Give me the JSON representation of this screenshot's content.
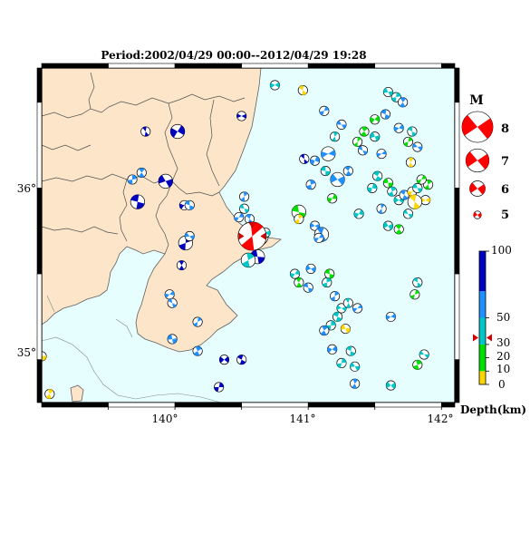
{
  "title": "Period:2002/04/29 00:00--2012/04/29 19:28",
  "lon_labels": [
    "140°",
    "141°",
    "142°"
  ],
  "lat_labels": [
    "36°",
    "35°"
  ],
  "lon_range": [
    139.0,
    142.1
  ],
  "lat_range": [
    34.75,
    36.7
  ],
  "magnitude_legend": {
    "title": "M",
    "items": [
      {
        "label": "8",
        "mag": 8
      },
      {
        "label": "7",
        "mag": 7
      },
      {
        "label": "6",
        "mag": 6
      },
      {
        "label": "5",
        "mag": 5
      }
    ]
  },
  "depth_scale": {
    "title": "Depth(km)",
    "labels": [
      "100",
      "50",
      "30",
      "20",
      "10",
      "0"
    ],
    "bands": [
      {
        "from": 0,
        "to": 10,
        "color": "#ffd700"
      },
      {
        "from": 10,
        "to": 30,
        "color": "#00e000"
      },
      {
        "from": 30,
        "to": 50,
        "color": "#00c8c8"
      },
      {
        "from": 50,
        "to": 70,
        "color": "#1e90ff"
      },
      {
        "from": 70,
        "to": 100,
        "color": "#0000c0"
      }
    ],
    "marker_depth": 35
  },
  "colors": {
    "land": "#fce5c8",
    "sea": "#e6fefe",
    "boundary": "#505050",
    "frame": "#000000",
    "main_event": "#ff0000"
  },
  "mechanisms": [
    {
      "lon": 140.58,
      "lat": 35.72,
      "mag": 7,
      "color": "#ff0000",
      "main": true
    },
    {
      "lon": 140.63,
      "lat": 35.72,
      "mag": 6,
      "color": "#1e90ff"
    },
    {
      "lon": 140.62,
      "lat": 35.6,
      "mag": 5.5,
      "color": "#0000c0"
    },
    {
      "lon": 140.55,
      "lat": 35.58,
      "mag": 5.5,
      "color": "#00c8c8"
    },
    {
      "lon": 140.68,
      "lat": 35.74,
      "mag": 5,
      "color": "#00c8c8"
    },
    {
      "lon": 140.56,
      "lat": 35.82,
      "mag": 5,
      "color": "#1e90ff"
    },
    {
      "lon": 140.48,
      "lat": 35.83,
      "mag": 5,
      "color": "#1e90ff"
    },
    {
      "lon": 140.52,
      "lat": 35.88,
      "mag": 5,
      "color": "#00c8c8"
    },
    {
      "lon": 140.52,
      "lat": 35.95,
      "mag": 5,
      "color": "#1e90ff"
    },
    {
      "lon": 140.5,
      "lat": 36.42,
      "mag": 5,
      "color": "#0000c0"
    },
    {
      "lon": 139.78,
      "lat": 36.33,
      "mag": 5,
      "color": "#0000c0"
    },
    {
      "lon": 140.02,
      "lat": 36.33,
      "mag": 5.5,
      "color": "#0000c0"
    },
    {
      "lon": 139.72,
      "lat": 35.92,
      "mag": 5.5,
      "color": "#0000c0"
    },
    {
      "lon": 139.68,
      "lat": 36.05,
      "mag": 5,
      "color": "#1e90ff"
    },
    {
      "lon": 139.93,
      "lat": 36.04,
      "mag": 5.5,
      "color": "#0000c0"
    },
    {
      "lon": 139.75,
      "lat": 36.09,
      "mag": 5,
      "color": "#1e90ff"
    },
    {
      "lon": 140.07,
      "lat": 35.9,
      "mag": 5,
      "color": "#0000c0"
    },
    {
      "lon": 140.11,
      "lat": 35.9,
      "mag": 5,
      "color": "#1e90ff"
    },
    {
      "lon": 140.08,
      "lat": 35.68,
      "mag": 5.5,
      "color": "#0000c0"
    },
    {
      "lon": 140.11,
      "lat": 35.72,
      "mag": 5,
      "color": "#1e90ff"
    },
    {
      "lon": 140.05,
      "lat": 35.55,
      "mag": 5,
      "color": "#0000c0"
    },
    {
      "lon": 139.96,
      "lat": 35.38,
      "mag": 5,
      "color": "#1e90ff"
    },
    {
      "lon": 139.98,
      "lat": 35.33,
      "mag": 5,
      "color": "#1e90ff"
    },
    {
      "lon": 140.17,
      "lat": 35.22,
      "mag": 5,
      "color": "#1e90ff"
    },
    {
      "lon": 139.98,
      "lat": 35.12,
      "mag": 5,
      "color": "#1e90ff"
    },
    {
      "lon": 140.17,
      "lat": 35.05,
      "mag": 5,
      "color": "#1e90ff"
    },
    {
      "lon": 140.37,
      "lat": 35.0,
      "mag": 5,
      "color": "#0000c0"
    },
    {
      "lon": 140.5,
      "lat": 35.0,
      "mag": 5,
      "color": "#0000c0"
    },
    {
      "lon": 140.33,
      "lat": 34.84,
      "mag": 5,
      "color": "#0000c0"
    },
    {
      "lon": 139.0,
      "lat": 35.02,
      "mag": 5,
      "color": "#ffd700"
    },
    {
      "lon": 139.06,
      "lat": 34.8,
      "mag": 5,
      "color": "#ffd700"
    },
    {
      "lon": 140.75,
      "lat": 36.6,
      "mag": 5,
      "color": "#00c8c8"
    },
    {
      "lon": 140.96,
      "lat": 36.57,
      "mag": 5,
      "color": "#ffd700"
    },
    {
      "lon": 141.12,
      "lat": 36.45,
      "mag": 5,
      "color": "#1e90ff"
    },
    {
      "lon": 141.25,
      "lat": 36.37,
      "mag": 5,
      "color": "#1e90ff"
    },
    {
      "lon": 141.2,
      "lat": 36.3,
      "mag": 5,
      "color": "#00c8c8"
    },
    {
      "lon": 141.15,
      "lat": 36.2,
      "mag": 5.5,
      "color": "#1e90ff"
    },
    {
      "lon": 140.97,
      "lat": 36.17,
      "mag": 5,
      "color": "#0000c0"
    },
    {
      "lon": 141.05,
      "lat": 36.16,
      "mag": 5,
      "color": "#1e90ff"
    },
    {
      "lon": 141.13,
      "lat": 36.1,
      "mag": 5,
      "color": "#00c8c8"
    },
    {
      "lon": 141.02,
      "lat": 36.02,
      "mag": 5,
      "color": "#1e90ff"
    },
    {
      "lon": 141.22,
      "lat": 36.05,
      "mag": 5.5,
      "color": "#1e90ff"
    },
    {
      "lon": 141.3,
      "lat": 36.1,
      "mag": 5,
      "color": "#1e90ff"
    },
    {
      "lon": 141.18,
      "lat": 35.94,
      "mag": 5,
      "color": "#00e000"
    },
    {
      "lon": 140.93,
      "lat": 35.86,
      "mag": 5.5,
      "color": "#00e000"
    },
    {
      "lon": 140.93,
      "lat": 35.82,
      "mag": 5,
      "color": "#ffd700"
    },
    {
      "lon": 141.05,
      "lat": 35.78,
      "mag": 5,
      "color": "#1e90ff"
    },
    {
      "lon": 141.1,
      "lat": 35.73,
      "mag": 5.5,
      "color": "#1e90ff"
    },
    {
      "lon": 141.08,
      "lat": 35.71,
      "mag": 5,
      "color": "#1e90ff"
    },
    {
      "lon": 141.41,
      "lat": 36.22,
      "mag": 5,
      "color": "#1e90ff"
    },
    {
      "lon": 141.37,
      "lat": 36.27,
      "mag": 5,
      "color": "#00e000"
    },
    {
      "lon": 141.5,
      "lat": 36.3,
      "mag": 5,
      "color": "#00c8c8"
    },
    {
      "lon": 141.42,
      "lat": 36.33,
      "mag": 5,
      "color": "#00e000"
    },
    {
      "lon": 141.5,
      "lat": 36.4,
      "mag": 5,
      "color": "#00e000"
    },
    {
      "lon": 141.58,
      "lat": 36.43,
      "mag": 5,
      "color": "#1e90ff"
    },
    {
      "lon": 141.66,
      "lat": 36.53,
      "mag": 5,
      "color": "#00c8c8"
    },
    {
      "lon": 141.6,
      "lat": 36.56,
      "mag": 5,
      "color": "#00c8c8"
    },
    {
      "lon": 141.71,
      "lat": 36.5,
      "mag": 5,
      "color": "#1e90ff"
    },
    {
      "lon": 141.68,
      "lat": 36.35,
      "mag": 5,
      "color": "#1e90ff"
    },
    {
      "lon": 141.78,
      "lat": 36.33,
      "mag": 5,
      "color": "#00c8c8"
    },
    {
      "lon": 141.75,
      "lat": 36.27,
      "mag": 5,
      "color": "#00e000"
    },
    {
      "lon": 141.82,
      "lat": 36.24,
      "mag": 5,
      "color": "#1e90ff"
    },
    {
      "lon": 141.77,
      "lat": 36.15,
      "mag": 5,
      "color": "#ffd700"
    },
    {
      "lon": 141.55,
      "lat": 36.2,
      "mag": 5,
      "color": "#1e90ff"
    },
    {
      "lon": 141.52,
      "lat": 36.07,
      "mag": 5,
      "color": "#00c8c8"
    },
    {
      "lon": 141.48,
      "lat": 36.0,
      "mag": 5,
      "color": "#00c8c8"
    },
    {
      "lon": 141.6,
      "lat": 36.03,
      "mag": 5,
      "color": "#00e000"
    },
    {
      "lon": 141.63,
      "lat": 35.98,
      "mag": 5,
      "color": "#00c8c8"
    },
    {
      "lon": 141.68,
      "lat": 35.93,
      "mag": 5,
      "color": "#00c8c8"
    },
    {
      "lon": 141.72,
      "lat": 35.96,
      "mag": 5,
      "color": "#1e90ff"
    },
    {
      "lon": 141.78,
      "lat": 35.98,
      "mag": 5,
      "color": "#ffd700"
    },
    {
      "lon": 141.82,
      "lat": 36.0,
      "mag": 5,
      "color": "#00c8c8"
    },
    {
      "lon": 141.9,
      "lat": 36.02,
      "mag": 5,
      "color": "#00e000"
    },
    {
      "lon": 141.88,
      "lat": 35.93,
      "mag": 5,
      "color": "#ffd700"
    },
    {
      "lon": 141.8,
      "lat": 35.92,
      "mag": 5.5,
      "color": "#ffd700"
    },
    {
      "lon": 141.85,
      "lat": 36.05,
      "mag": 5,
      "color": "#00e000"
    },
    {
      "lon": 141.75,
      "lat": 35.85,
      "mag": 5,
      "color": "#00c8c8"
    },
    {
      "lon": 141.55,
      "lat": 35.88,
      "mag": 5,
      "color": "#1e90ff"
    },
    {
      "lon": 141.6,
      "lat": 35.78,
      "mag": 5,
      "color": "#00c8c8"
    },
    {
      "lon": 141.68,
      "lat": 35.76,
      "mag": 5,
      "color": "#00e000"
    },
    {
      "lon": 141.38,
      "lat": 35.85,
      "mag": 5,
      "color": "#00c8c8"
    },
    {
      "lon": 141.16,
      "lat": 35.5,
      "mag": 5,
      "color": "#00e000"
    },
    {
      "lon": 141.14,
      "lat": 35.45,
      "mag": 5,
      "color": "#00c8c8"
    },
    {
      "lon": 141.02,
      "lat": 35.53,
      "mag": 5,
      "color": "#1e90ff"
    },
    {
      "lon": 140.93,
      "lat": 35.45,
      "mag": 5,
      "color": "#00e000"
    },
    {
      "lon": 140.9,
      "lat": 35.5,
      "mag": 5,
      "color": "#00c8c8"
    },
    {
      "lon": 141.0,
      "lat": 35.42,
      "mag": 5,
      "color": "#1e90ff"
    },
    {
      "lon": 141.2,
      "lat": 35.37,
      "mag": 5,
      "color": "#1e90ff"
    },
    {
      "lon": 141.25,
      "lat": 35.3,
      "mag": 5,
      "color": "#00c8c8"
    },
    {
      "lon": 141.3,
      "lat": 35.33,
      "mag": 5,
      "color": "#00c8c8"
    },
    {
      "lon": 141.37,
      "lat": 35.3,
      "mag": 5,
      "color": "#1e90ff"
    },
    {
      "lon": 141.22,
      "lat": 35.25,
      "mag": 5,
      "color": "#00c8c8"
    },
    {
      "lon": 141.17,
      "lat": 35.2,
      "mag": 5,
      "color": "#00c8c8"
    },
    {
      "lon": 141.28,
      "lat": 35.18,
      "mag": 5,
      "color": "#ffd700"
    },
    {
      "lon": 141.12,
      "lat": 35.17,
      "mag": 5,
      "color": "#1e90ff"
    },
    {
      "lon": 141.18,
      "lat": 35.06,
      "mag": 5,
      "color": "#1e90ff"
    },
    {
      "lon": 141.32,
      "lat": 35.05,
      "mag": 5,
      "color": "#00c8c8"
    },
    {
      "lon": 141.25,
      "lat": 34.98,
      "mag": 5,
      "color": "#00c8c8"
    },
    {
      "lon": 141.35,
      "lat": 34.96,
      "mag": 5,
      "color": "#00c8c8"
    },
    {
      "lon": 141.35,
      "lat": 34.86,
      "mag": 5,
      "color": "#1e90ff"
    },
    {
      "lon": 141.62,
      "lat": 35.25,
      "mag": 5,
      "color": "#1e90ff"
    },
    {
      "lon": 141.82,
      "lat": 35.45,
      "mag": 5,
      "color": "#00c8c8"
    },
    {
      "lon": 141.8,
      "lat": 35.38,
      "mag": 5,
      "color": "#00e000"
    },
    {
      "lon": 141.87,
      "lat": 35.03,
      "mag": 5,
      "color": "#00c8c8"
    },
    {
      "lon": 141.82,
      "lat": 34.97,
      "mag": 5,
      "color": "#00e000"
    },
    {
      "lon": 141.62,
      "lat": 34.85,
      "mag": 5,
      "color": "#00c8c8"
    }
  ]
}
